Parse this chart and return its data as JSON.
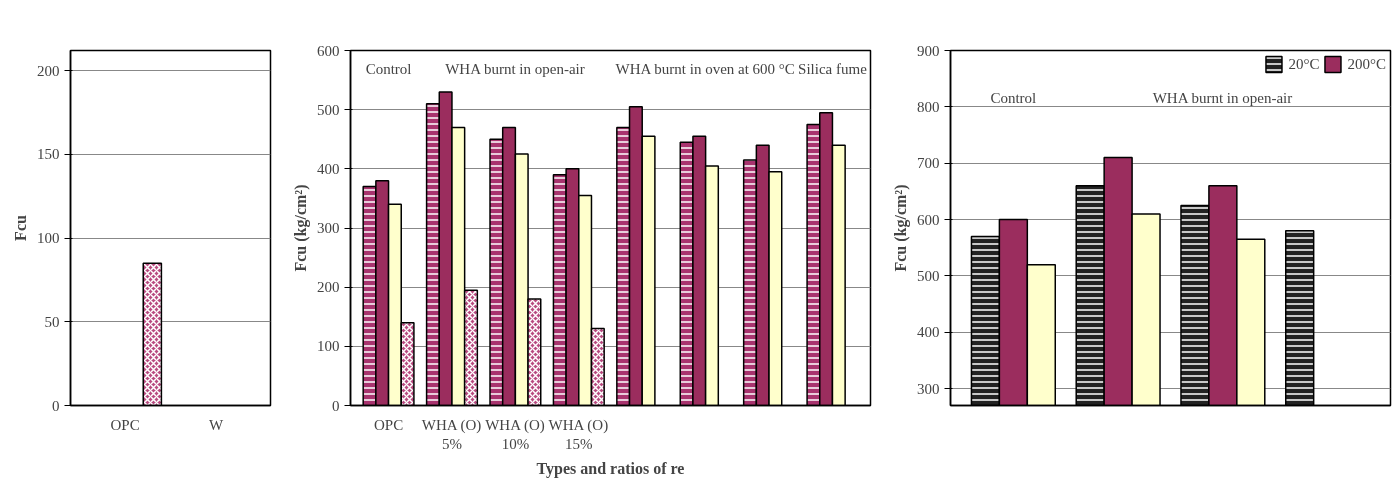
{
  "chart_data": [
    {
      "type": "bar",
      "categories": [
        "OPC",
        "W"
      ],
      "ylabel": "Fcu",
      "ylim": [
        0,
        212
      ],
      "yticks": [
        0,
        50,
        100,
        150,
        200
      ],
      "grid": "y",
      "series": [
        {
          "color": "#222222",
          "values": [
            null,
            null
          ]
        },
        {
          "color": "#9b2d5e",
          "values": [
            null,
            null
          ]
        },
        {
          "color": "#ffffcc",
          "values": [
            null,
            null
          ]
        },
        {
          "color": "#b84a80",
          "values": [
            85,
            null
          ]
        }
      ]
    },
    {
      "type": "bar",
      "categories": [
        "OPC",
        "WHA (O)\n5%",
        "WHA (O)\n10%",
        "WHA (O)\n15%",
        null,
        null,
        null,
        null
      ],
      "xlabel": "Types and ratios of re",
      "ylabel": "Fcu (kg/cm²)",
      "ylim": [
        0,
        600
      ],
      "yticks": [
        0,
        100,
        200,
        300,
        400,
        500,
        600
      ],
      "grid": "y",
      "annotations": [
        "Control",
        "WHA burnt in open-air",
        "WHA burnt in oven at 600 °C",
        "Silica fume"
      ],
      "series": [
        {
          "color": "#a8336e",
          "values": [
            370,
            510,
            450,
            390,
            470,
            445,
            415,
            475
          ]
        },
        {
          "color": "#9b2d5e",
          "values": [
            380,
            530,
            470,
            400,
            505,
            455,
            440,
            495
          ]
        },
        {
          "color": "#ffffcc",
          "values": [
            340,
            470,
            425,
            355,
            455,
            405,
            395,
            440
          ]
        },
        {
          "color": "#b84a80",
          "values": [
            140,
            195,
            180,
            130,
            null,
            null,
            null,
            null
          ]
        }
      ]
    },
    {
      "type": "bar",
      "categories": [
        null,
        null,
        null,
        null
      ],
      "ylabel": "Fcu (kg/cm²)",
      "ylim": [
        270,
        900
      ],
      "yticks": [
        300,
        400,
        500,
        600,
        700,
        800,
        900
      ],
      "grid": "y",
      "legend": "top",
      "annotations": [
        "Control",
        "WHA burnt in open-air"
      ],
      "series": [
        {
          "name": "20°C",
          "color": "#222222",
          "values": [
            570,
            660,
            625,
            580
          ]
        },
        {
          "name": "200°C",
          "color": "#9b2d5e",
          "values": [
            600,
            710,
            660,
            null
          ]
        },
        {
          "color": "#ffffcc",
          "values": [
            520,
            610,
            565,
            null
          ]
        }
      ]
    }
  ]
}
